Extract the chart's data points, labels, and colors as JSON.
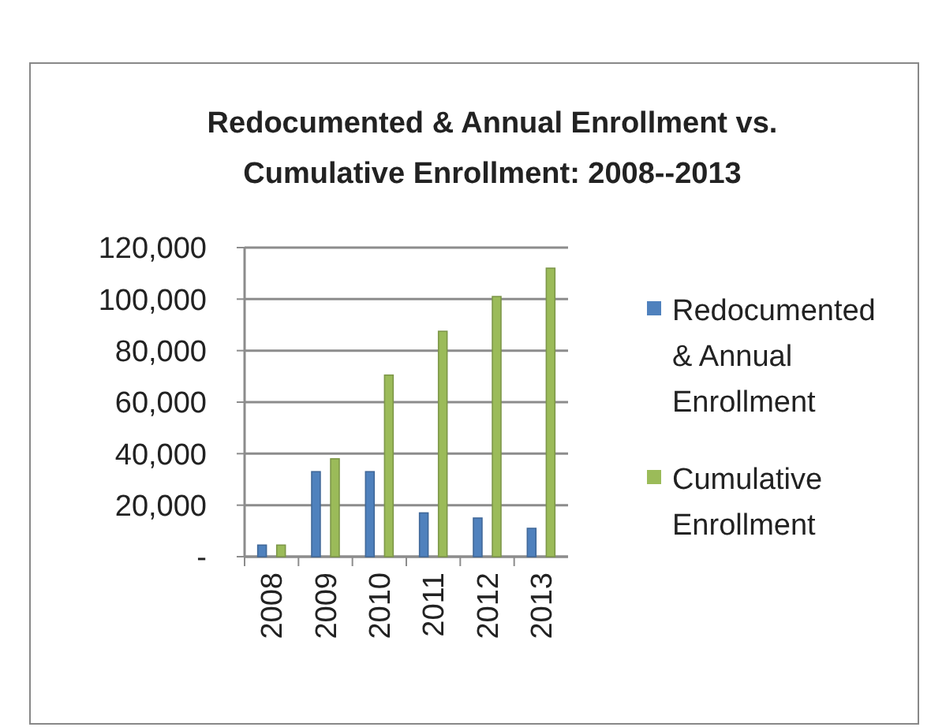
{
  "chart_data": {
    "type": "bar",
    "title": "Redocumented & Annual Enrollment vs. Cumulative Enrollment: 2008--2013",
    "categories": [
      "2008",
      "2009",
      "2010",
      "2011",
      "2012",
      "2013"
    ],
    "series": [
      {
        "name": "Redocumented & Annual Enrollment",
        "color": "#4f81bd",
        "values": [
          4500,
          33000,
          33000,
          17000,
          15000,
          11000
        ]
      },
      {
        "name": "Cumulative Enrollment",
        "color": "#9bbb59",
        "values": [
          4500,
          38000,
          70500,
          87500,
          101000,
          112000
        ]
      }
    ],
    "ylim": [
      0,
      120000
    ],
    "yticks": [
      {
        "value": 0,
        "label": "-"
      },
      {
        "value": 20000,
        "label": "20,000"
      },
      {
        "value": 40000,
        "label": "40,000"
      },
      {
        "value": 60000,
        "label": "60,000"
      },
      {
        "value": 80000,
        "label": "80,000"
      },
      {
        "value": 100000,
        "label": "100,000"
      },
      {
        "value": 120000,
        "label": "120,000"
      }
    ],
    "grid": "y",
    "legend": "right"
  }
}
